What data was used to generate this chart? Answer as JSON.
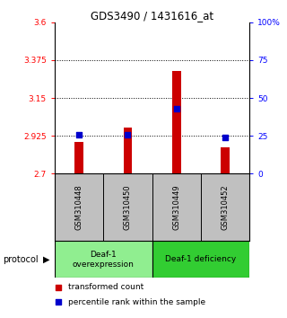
{
  "title": "GDS3490 / 1431616_at",
  "samples": [
    "GSM310448",
    "GSM310450",
    "GSM310449",
    "GSM310452"
  ],
  "transformed_counts": [
    2.89,
    2.975,
    3.31,
    2.855
  ],
  "percentile_ranks": [
    26,
    26,
    43,
    24
  ],
  "ylim_left": [
    2.7,
    3.6
  ],
  "ylim_right": [
    0,
    100
  ],
  "yticks_left": [
    2.7,
    2.925,
    3.15,
    3.375,
    3.6
  ],
  "yticks_right": [
    0,
    25,
    50,
    75,
    100
  ],
  "ytick_labels_left": [
    "2.7",
    "2.925",
    "3.15",
    "3.375",
    "3.6"
  ],
  "ytick_labels_right": [
    "0",
    "25",
    "50",
    "75",
    "100%"
  ],
  "hlines": [
    2.925,
    3.15,
    3.375
  ],
  "bar_color": "#cc0000",
  "marker_color": "#0000cc",
  "group1_label": "Deaf-1\noverexpression",
  "group2_label": "Deaf-1 deficiency",
  "group1_bg": "#90ee90",
  "group2_bg": "#32cd32",
  "sample_bg": "#c0c0c0",
  "protocol_label": "protocol",
  "legend_bar_label": "transformed count",
  "legend_marker_label": "percentile rank within the sample",
  "plot_bg": "#ffffff",
  "bar_width": 0.18
}
